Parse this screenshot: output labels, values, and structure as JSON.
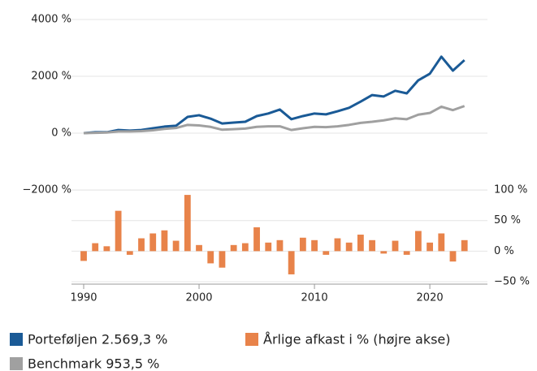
{
  "chart_data": {
    "type": "line",
    "x": [
      1990,
      1991,
      1992,
      1993,
      1994,
      1995,
      1996,
      1997,
      1998,
      1999,
      2000,
      2001,
      2002,
      2003,
      2004,
      2005,
      2006,
      2007,
      2008,
      2009,
      2010,
      2011,
      2012,
      2013,
      2014,
      2015,
      2016,
      2017,
      2018,
      2019,
      2020,
      2021,
      2022,
      2023
    ],
    "series": [
      {
        "name": "Porteføljen 2.569,3 %",
        "type": "line",
        "color": "#1a5a96",
        "values": [
          0,
          30,
          30,
          110,
          90,
          110,
          170,
          230,
          260,
          570,
          630,
          510,
          340,
          370,
          400,
          600,
          690,
          830,
          490,
          600,
          690,
          660,
          770,
          890,
          1110,
          1340,
          1290,
          1490,
          1400,
          1860,
          2090,
          2690,
          2200,
          2569.3
        ]
      },
      {
        "name": "Benchmark 953,5 %",
        "type": "line",
        "color": "#a0a0a0",
        "values": [
          0,
          10,
          20,
          60,
          60,
          70,
          100,
          150,
          180,
          290,
          270,
          220,
          120,
          140,
          160,
          220,
          240,
          240,
          110,
          170,
          220,
          210,
          240,
          290,
          360,
          400,
          450,
          520,
          490,
          650,
          710,
          930,
          810,
          953.5
        ]
      },
      {
        "name": "Årlige afkast i % (højre akse)",
        "type": "bar",
        "axis": "y2",
        "color": "#e8834a",
        "values": [
          -16,
          13,
          8,
          66,
          -6,
          21,
          29,
          34,
          17,
          92,
          10,
          -20,
          -27,
          10,
          13,
          39,
          14,
          18,
          -38,
          22,
          18,
          -6,
          21,
          14,
          27,
          18,
          -4,
          17,
          -6,
          33,
          14,
          29,
          -17,
          18
        ]
      }
    ],
    "xlim": [
      1990,
      2024.5
    ],
    "xticks": [
      1990,
      2000,
      2010,
      2020
    ],
    "ylim": [
      -5230,
      4000
    ],
    "yticks": [
      {
        "value": 4000,
        "label": "4000 %"
      },
      {
        "value": 2000,
        "label": "2000 %"
      },
      {
        "value": 0,
        "label": "0 %"
      },
      {
        "value": -2000,
        "label": "−2000 %"
      }
    ],
    "y2lim": [
      -50,
      379
    ],
    "y2ticks": [
      {
        "value": 100,
        "label": "100 %"
      },
      {
        "value": 50,
        "label": "50 %"
      },
      {
        "value": 0,
        "label": "0 %"
      },
      {
        "value": -50,
        "label": "−50 %"
      }
    ],
    "grid": true
  }
}
